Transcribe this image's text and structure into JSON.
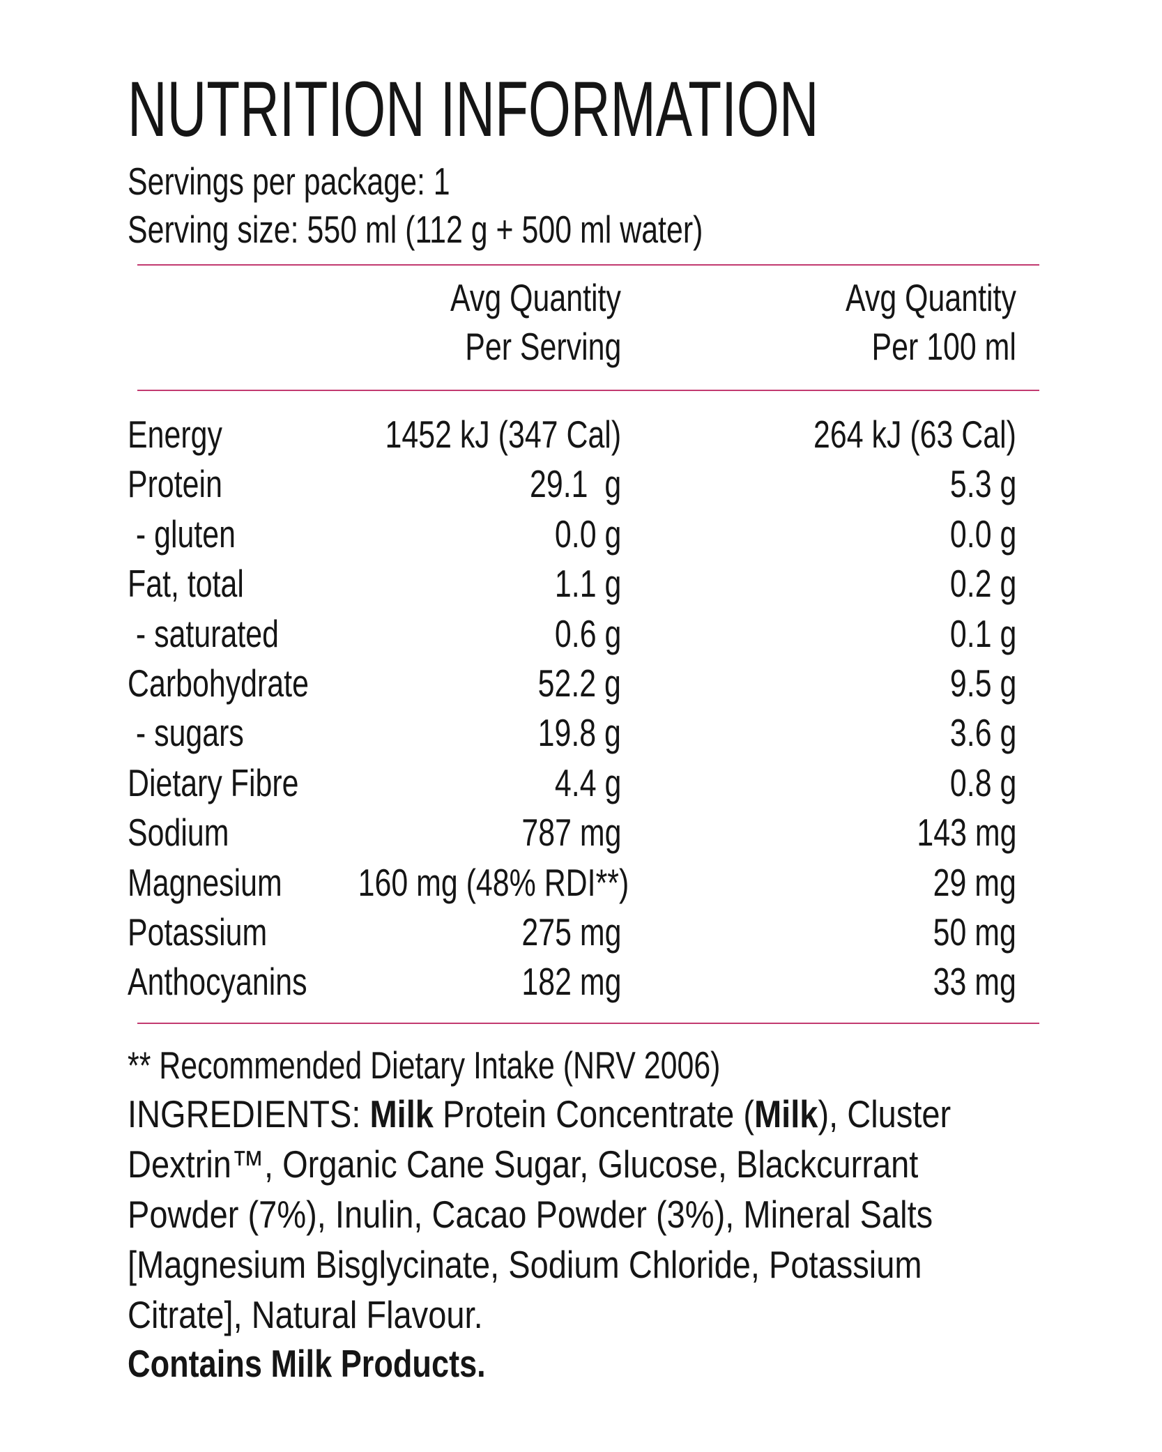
{
  "header": {
    "title": "NUTRITION INFORMATION",
    "servings_per_package": "Servings per package: 1",
    "serving_size": "Serving size: 550 ml (112 g + 500 ml water)"
  },
  "table": {
    "columns": [
      [
        "Avg Quantity",
        "Per Serving"
      ],
      [
        "Avg Quantity",
        "Per 100 ml"
      ]
    ],
    "rows": [
      [
        "Energy",
        "1452 kJ (347 Cal)",
        "264 kJ (63 Cal)"
      ],
      [
        "Protein",
        "29.1  g",
        "5.3 g"
      ],
      [
        " - gluten",
        "0.0 g",
        "0.0 g"
      ],
      [
        "Fat, total",
        "1.1 g",
        "0.2 g"
      ],
      [
        " - saturated",
        "0.6 g",
        "0.1 g"
      ],
      [
        "Carbohydrate",
        "52.2 g",
        "9.5 g"
      ],
      [
        " - sugars",
        "19.8 g",
        "3.6 g"
      ],
      [
        "Dietary Fibre",
        "4.4 g",
        "0.8 g"
      ],
      [
        "Sodium",
        "787 mg",
        "143 mg"
      ],
      [
        "Magnesium",
        "160 mg (48% RDI**)",
        "29 mg"
      ],
      [
        "Potassium",
        "275 mg",
        "50 mg"
      ],
      [
        "Anthocyanins",
        "182 mg",
        "33 mg"
      ]
    ]
  },
  "footnote": "** Recommended Dietary Intake (NRV 2006)",
  "ingredients": {
    "lines": [
      [
        {
          "text": "INGREDIENTS: "
        },
        {
          "text": "Milk",
          "bold": true
        },
        {
          "text": " Protein Concentrate ("
        },
        {
          "text": "Milk",
          "bold": true
        },
        {
          "text": "), Cluster"
        }
      ],
      [
        {
          "text": "Dextrin™, Organic Cane Sugar, Glucose, Blackcurrant"
        }
      ],
      [
        {
          "text": "Powder (7%), Inulin, Cacao Powder (3%), Mineral Salts"
        }
      ],
      [
        {
          "text": "[Magnesium Bisglycinate, Sodium Chloride, Potassium"
        }
      ],
      [
        {
          "text": "Citrate], Natural Flavour."
        }
      ]
    ]
  },
  "allergen": "Contains Milk Products."
}
